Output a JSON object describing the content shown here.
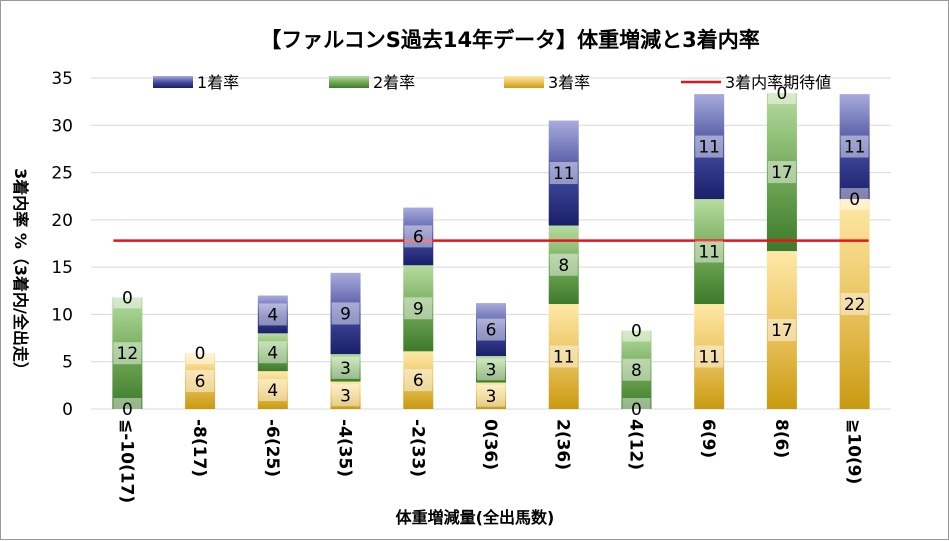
{
  "chart_data": {
    "type": "bar",
    "stacked": true,
    "title": "【ファルコンS過去14年データ】体重増減と3着内率",
    "xlabel": "体重増減量(全出馬数)",
    "ylabel": "3着内率 %（3着内/全出走）",
    "ylim": [
      0,
      35
    ],
    "yticks": [
      "0",
      "5",
      "10",
      "15",
      "20",
      "25",
      "30",
      "35"
    ],
    "ytick_values": [
      0,
      5,
      10,
      15,
      20,
      25,
      30,
      35
    ],
    "categories": [
      "≦-10(17)",
      "-8(17)",
      "-6(25)",
      "-4(35)",
      "-2(33)",
      "0(36)",
      "2(36)",
      "4(12)",
      "6(9)",
      "8(6)",
      "≧10(9)"
    ],
    "series": [
      {
        "name": "3着率",
        "values": [
          0,
          5.9,
          4.0,
          2.9,
          6.1,
          2.8,
          11.1,
          0,
          11.1,
          16.7,
          22.2
        ],
        "labels": [
          "0",
          "6",
          "4",
          "3",
          "6",
          "3",
          "11",
          "0",
          "11",
          "17",
          "22"
        ]
      },
      {
        "name": "2着率",
        "values": [
          11.8,
          0,
          4.0,
          2.9,
          9.1,
          2.8,
          8.3,
          8.3,
          11.1,
          16.7,
          0
        ],
        "labels": [
          "12",
          "",
          "4",
          "3",
          "9",
          "3",
          "8",
          "8",
          "11",
          "17",
          "0"
        ]
      },
      {
        "name": "1着率",
        "values": [
          0,
          0,
          4.0,
          8.6,
          6.1,
          5.6,
          11.1,
          0,
          11.1,
          0,
          11.1
        ],
        "labels": [
          "0",
          "0",
          "4",
          "9",
          "6",
          "6",
          "11",
          "0",
          "11",
          "0",
          "11"
        ]
      }
    ],
    "reference_line": {
      "name": "3着内率期待値",
      "value": 17.8
    },
    "colors": {
      "1着率": "#7b7fc4",
      "2着率": "#7fb86a",
      "3着率": "#f5d27a",
      "3着内率期待値": "#e8141b"
    },
    "legend": [
      "1着率",
      "2着率",
      "3着率",
      "3着内率期待値"
    ],
    "legend_position": "top"
  }
}
